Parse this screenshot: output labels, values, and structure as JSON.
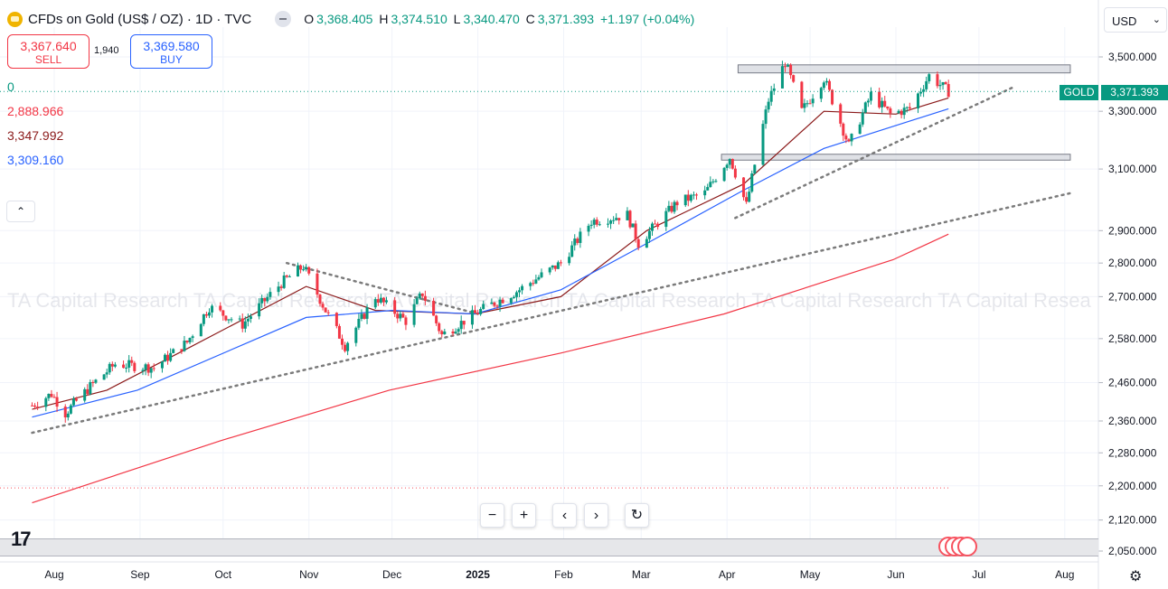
{
  "header": {
    "title": "CFDs on Gold (US$ / OZ) · 1D · TVC",
    "ohlc": [
      {
        "k": "O",
        "v": "3,368.405"
      },
      {
        "k": "H",
        "v": "3,374.510"
      },
      {
        "k": "L",
        "v": "3,340.470"
      },
      {
        "k": "C",
        "v": "3,371.393"
      }
    ],
    "change": "+1.197 (+0.04%)"
  },
  "trade": {
    "sell_price": "3,367.640",
    "sell_label": "SELL",
    "spread": "1,940",
    "buy_price": "3,369.580",
    "buy_label": "BUY"
  },
  "indicators": [
    {
      "value": "0",
      "color": "#089981"
    },
    {
      "value": "2,888.966",
      "color": "#f23645"
    },
    {
      "value": "3,347.992",
      "color": "#8b1a1a"
    },
    {
      "value": "3,309.160",
      "color": "#2962ff"
    }
  ],
  "collapse_icon": "chevron-up-icon",
  "currency": "USD",
  "nav_buttons": [
    "zoom-out-icon",
    "zoom-in-icon",
    "scroll-left-icon",
    "scroll-right-icon",
    "reset-icon"
  ],
  "last_price_label": {
    "symbol": "GOLD",
    "price": "3,371.393"
  },
  "watermark": "TA Capital Research TA Capital Research TA Capital Research TA Capital Research TA Capital Research TA Capital Resea",
  "colors": {
    "up": "#089981",
    "down": "#f23645",
    "ma_short": "#8b1a1a",
    "ma_mid": "#2962ff",
    "ma_long": "#f23645",
    "trend": "#7b7b7b"
  },
  "chart_data": {
    "type": "candlestick",
    "x_tick_labels": [
      "Aug",
      "Sep",
      "Oct",
      "Nov",
      "Dec",
      "2025",
      "Feb",
      "Mar",
      "Apr",
      "May",
      "Jun",
      "Jul",
      "Aug"
    ],
    "y_tick_labels": [
      "3,500.000",
      "3,300.000",
      "3,100.000",
      "2,900.000",
      "2,800.000",
      "2,700.000",
      "2,580.000",
      "2,460.000",
      "2,360.000",
      "2,280.000",
      "2,200.000",
      "2,120.000",
      "2,050.000"
    ],
    "y_scale": "log",
    "ylim": [
      2030,
      3620
    ],
    "close_path": [
      [
        "2024-07-24",
        2400
      ],
      [
        "2024-07-31",
        2430
      ],
      [
        "2024-08-05",
        2380
      ],
      [
        "2024-08-14",
        2450
      ],
      [
        "2024-08-23",
        2510
      ],
      [
        "2024-09-06",
        2500
      ],
      [
        "2024-09-18",
        2570
      ],
      [
        "2024-09-26",
        2670
      ],
      [
        "2024-10-08",
        2620
      ],
      [
        "2024-10-22",
        2740
      ],
      [
        "2024-10-30",
        2790
      ],
      [
        "2024-11-07",
        2660
      ],
      [
        "2024-11-14",
        2560
      ],
      [
        "2024-11-25",
        2700
      ],
      [
        "2024-12-06",
        2630
      ],
      [
        "2024-12-12",
        2710
      ],
      [
        "2024-12-19",
        2590
      ],
      [
        "2025-01-02",
        2660
      ],
      [
        "2025-01-16",
        2720
      ],
      [
        "2025-01-31",
        2800
      ],
      [
        "2025-02-11",
        2930
      ],
      [
        "2025-02-24",
        2950
      ],
      [
        "2025-02-28",
        2860
      ],
      [
        "2025-03-14",
        2990
      ],
      [
        "2025-03-24",
        3020
      ],
      [
        "2025-04-02",
        3140
      ],
      [
        "2025-04-08",
        2980
      ],
      [
        "2025-04-16",
        3340
      ],
      [
        "2025-04-22",
        3480
      ],
      [
        "2025-04-28",
        3300
      ],
      [
        "2025-05-06",
        3420
      ],
      [
        "2025-05-15",
        3180
      ],
      [
        "2025-05-23",
        3360
      ],
      [
        "2025-05-30",
        3290
      ],
      [
        "2025-06-06",
        3310
      ],
      [
        "2025-06-13",
        3430
      ],
      [
        "2025-06-20",
        3371
      ]
    ],
    "moving_averages": [
      {
        "value": "3,347.992",
        "points": [
          [
            "2024-07-24",
            2390
          ],
          [
            "2024-08-20",
            2440
          ],
          [
            "2024-09-20",
            2560
          ],
          [
            "2024-10-31",
            2730
          ],
          [
            "2024-11-25",
            2660
          ],
          [
            "2024-12-31",
            2650
          ],
          [
            "2025-01-31",
            2700
          ],
          [
            "2025-03-03",
            2900
          ],
          [
            "2025-04-07",
            3050
          ],
          [
            "2025-05-06",
            3300
          ],
          [
            "2025-06-01",
            3290
          ],
          [
            "2025-06-20",
            3348
          ]
        ]
      },
      {
        "value": "3,309.160",
        "points": [
          [
            "2024-07-24",
            2370
          ],
          [
            "2024-08-31",
            2440
          ],
          [
            "2024-10-31",
            2640
          ],
          [
            "2024-12-01",
            2660
          ],
          [
            "2024-12-31",
            2650
          ],
          [
            "2025-01-31",
            2720
          ],
          [
            "2025-03-03",
            2860
          ],
          [
            "2025-04-07",
            3030
          ],
          [
            "2025-05-06",
            3170
          ],
          [
            "2025-06-20",
            3309
          ]
        ]
      },
      {
        "value": "2,888.966",
        "points": [
          [
            "2024-07-24",
            2160
          ],
          [
            "2024-09-30",
            2310
          ],
          [
            "2024-11-30",
            2440
          ],
          [
            "2025-01-31",
            2540
          ],
          [
            "2025-03-31",
            2650
          ],
          [
            "2025-05-31",
            2810
          ],
          [
            "2025-06-20",
            2889
          ]
        ]
      }
    ],
    "trend_lines": [
      {
        "from": [
          "2024-07-24",
          2330
        ],
        "to": [
          "2025-08-03",
          3020
        ]
      },
      {
        "from": [
          "2024-10-24",
          2800
        ],
        "to": [
          "2025-01-01",
          2650
        ]
      },
      {
        "from": [
          "2025-04-04",
          2940
        ],
        "to": [
          "2025-07-14",
          3390
        ]
      }
    ],
    "resistance_zones": [
      {
        "from": "2025-04-05",
        "to": "2025-08-03",
        "price": [
          3440,
          3470
        ]
      },
      {
        "from": "2025-03-30",
        "to": "2025-08-03",
        "price": [
          3130,
          3150
        ]
      }
    ],
    "last_price": 3371.393
  }
}
